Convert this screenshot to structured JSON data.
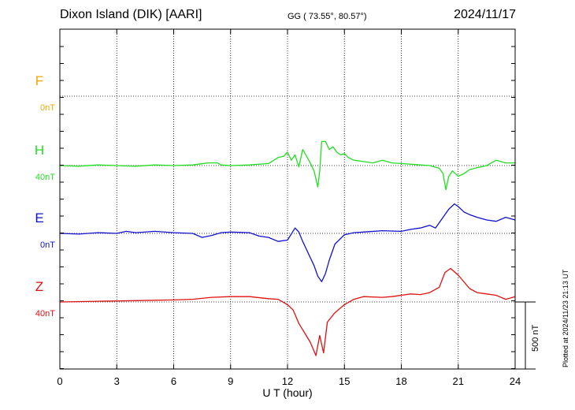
{
  "header": {
    "station": "Dixon Island (DIK)  [AARI]",
    "coords": "GG ( 73.55°,  80.57°)",
    "date": "2024/11/17"
  },
  "footer_note": "Plotted at 2024/11/23 21:13 UT",
  "colors": {
    "F": "#f0a800",
    "H": "#22dd22",
    "E": "#1010d0",
    "Z": "#e01010"
  },
  "chart_data": {
    "type": "line",
    "title": "",
    "xlabel": "U T (hour)",
    "ylabel": "",
    "xlim": [
      0,
      24
    ],
    "xticks": [
      0,
      3,
      6,
      9,
      12,
      15,
      18,
      21,
      24
    ],
    "x_tick_labels": [
      "0",
      "3",
      "6",
      "9",
      "12",
      "15",
      "18",
      "21",
      "24"
    ],
    "grid": true,
    "scale_bar": {
      "label": "500 nT",
      "value_nT": 500
    },
    "units": "nT",
    "series": [
      {
        "name": "F",
        "baseline_label": "0nT",
        "points": []
      },
      {
        "name": "H",
        "baseline_label": "40nT",
        "points": [
          [
            0,
            0
          ],
          [
            1,
            -5
          ],
          [
            2,
            5
          ],
          [
            3,
            0
          ],
          [
            4,
            -5
          ],
          [
            5,
            5
          ],
          [
            6,
            0
          ],
          [
            7,
            5
          ],
          [
            7.8,
            20
          ],
          [
            8.3,
            20
          ],
          [
            8.5,
            5
          ],
          [
            9,
            0
          ],
          [
            10,
            5
          ],
          [
            11,
            15
          ],
          [
            11.5,
            60
          ],
          [
            11.8,
            70
          ],
          [
            12.0,
            100
          ],
          [
            12.2,
            40
          ],
          [
            12.4,
            80
          ],
          [
            12.6,
            -10
          ],
          [
            12.8,
            120
          ],
          [
            13.0,
            70
          ],
          [
            13.2,
            20
          ],
          [
            13.4,
            -40
          ],
          [
            13.6,
            -160
          ],
          [
            13.7,
            -40
          ],
          [
            13.8,
            180
          ],
          [
            14.0,
            180
          ],
          [
            14.2,
            120
          ],
          [
            14.4,
            140
          ],
          [
            14.6,
            100
          ],
          [
            14.8,
            80
          ],
          [
            15.0,
            90
          ],
          [
            15.2,
            60
          ],
          [
            15.5,
            40
          ],
          [
            16,
            30
          ],
          [
            16.5,
            20
          ],
          [
            17,
            40
          ],
          [
            17.5,
            20
          ],
          [
            18,
            15
          ],
          [
            19,
            5
          ],
          [
            19.5,
            0
          ],
          [
            20,
            -20
          ],
          [
            20.2,
            -60
          ],
          [
            20.35,
            -180
          ],
          [
            20.5,
            -80
          ],
          [
            20.7,
            -40
          ],
          [
            21,
            -80
          ],
          [
            21.3,
            -60
          ],
          [
            21.6,
            -30
          ],
          [
            22,
            -15
          ],
          [
            22.5,
            0
          ],
          [
            23,
            40
          ],
          [
            23.5,
            20
          ],
          [
            24,
            20
          ]
        ]
      },
      {
        "name": "E",
        "baseline_label": "0nT",
        "points": [
          [
            0,
            0
          ],
          [
            1,
            -5
          ],
          [
            2,
            5
          ],
          [
            3,
            0
          ],
          [
            3.5,
            15
          ],
          [
            4,
            5
          ],
          [
            5,
            15
          ],
          [
            6,
            5
          ],
          [
            7,
            0
          ],
          [
            7.5,
            -30
          ],
          [
            8,
            -15
          ],
          [
            8.5,
            5
          ],
          [
            9,
            10
          ],
          [
            10,
            5
          ],
          [
            10.5,
            -20
          ],
          [
            11,
            -30
          ],
          [
            11.5,
            -60
          ],
          [
            12,
            -50
          ],
          [
            12.4,
            40
          ],
          [
            12.6,
            10
          ],
          [
            12.8,
            -60
          ],
          [
            13,
            -120
          ],
          [
            13.2,
            -180
          ],
          [
            13.4,
            -240
          ],
          [
            13.6,
            -320
          ],
          [
            13.8,
            -360
          ],
          [
            14,
            -300
          ],
          [
            14.2,
            -200
          ],
          [
            14.5,
            -80
          ],
          [
            15,
            -10
          ],
          [
            15.5,
            5
          ],
          [
            16,
            10
          ],
          [
            17,
            20
          ],
          [
            18,
            15
          ],
          [
            18.5,
            30
          ],
          [
            19,
            40
          ],
          [
            19.5,
            60
          ],
          [
            19.8,
            40
          ],
          [
            20,
            80
          ],
          [
            20.2,
            120
          ],
          [
            20.5,
            180
          ],
          [
            20.8,
            220
          ],
          [
            21,
            200
          ],
          [
            21.3,
            160
          ],
          [
            21.6,
            140
          ],
          [
            22,
            120
          ],
          [
            22.5,
            100
          ],
          [
            23,
            90
          ],
          [
            23.5,
            120
          ],
          [
            24,
            100
          ]
        ]
      },
      {
        "name": "Z",
        "baseline_label": "40nT",
        "points": [
          [
            0,
            0
          ],
          [
            2,
            5
          ],
          [
            4,
            10
          ],
          [
            6,
            15
          ],
          [
            7,
            20
          ],
          [
            8,
            35
          ],
          [
            9,
            40
          ],
          [
            10,
            40
          ],
          [
            11,
            25
          ],
          [
            11.5,
            20
          ],
          [
            12,
            -20
          ],
          [
            12.3,
            -60
          ],
          [
            12.6,
            -160
          ],
          [
            12.9,
            -230
          ],
          [
            13.2,
            -300
          ],
          [
            13.5,
            -400
          ],
          [
            13.7,
            -250
          ],
          [
            13.9,
            -380
          ],
          [
            14.1,
            -150
          ],
          [
            14.5,
            -80
          ],
          [
            15,
            -20
          ],
          [
            15.5,
            20
          ],
          [
            16,
            40
          ],
          [
            17,
            35
          ],
          [
            17.5,
            40
          ],
          [
            18,
            50
          ],
          [
            18.5,
            60
          ],
          [
            19,
            55
          ],
          [
            19.5,
            70
          ],
          [
            20,
            110
          ],
          [
            20.3,
            220
          ],
          [
            20.6,
            250
          ],
          [
            21,
            200
          ],
          [
            21.3,
            150
          ],
          [
            21.6,
            100
          ],
          [
            22,
            70
          ],
          [
            22.5,
            60
          ],
          [
            23,
            50
          ],
          [
            23.5,
            20
          ],
          [
            24,
            40
          ]
        ]
      }
    ]
  }
}
